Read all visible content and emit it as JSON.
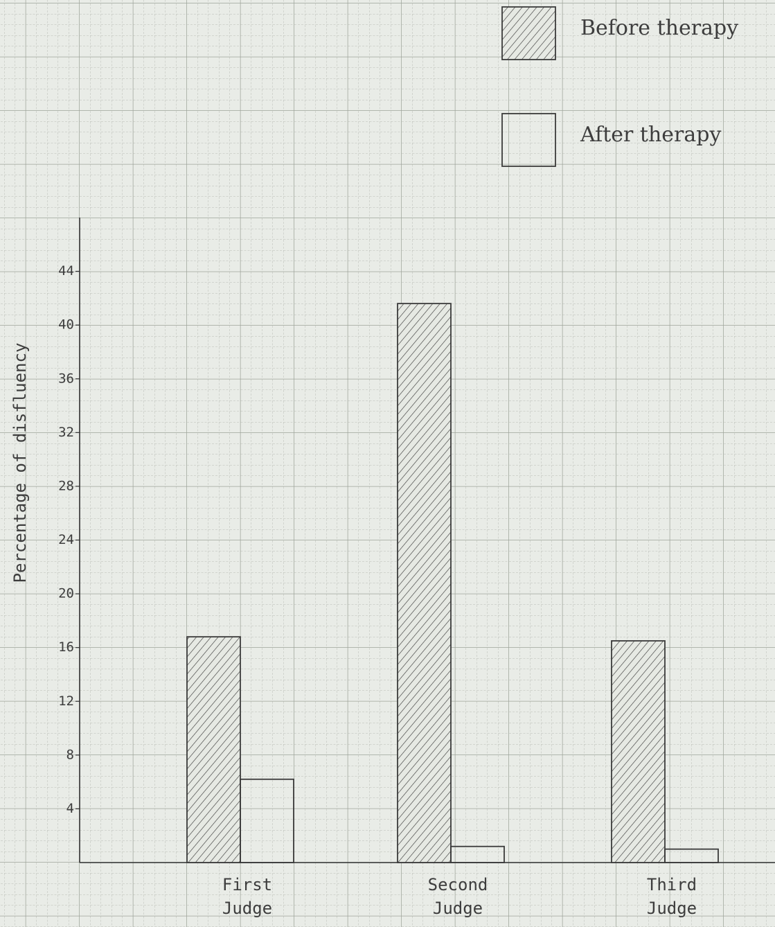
{
  "chart_data": {
    "type": "bar",
    "y_label": "Percentage of disfluency",
    "categories": [
      "First Judge",
      "Second Judge",
      "Third Judge"
    ],
    "series": [
      {
        "name": "Before therapy",
        "color": "#3a3a3a",
        "hatch": true,
        "values": [
          16.8,
          41.6,
          16.5
        ]
      },
      {
        "name": "After therapy",
        "color": "#3a3a3a",
        "hatch": false,
        "values": [
          6.2,
          1.2,
          1.0
        ]
      }
    ],
    "ylim": [
      0,
      48
    ],
    "yticks": [
      4,
      8,
      12,
      16,
      20,
      24,
      28,
      32,
      36,
      40,
      44
    ],
    "legend": "top-right",
    "grid": true
  }
}
